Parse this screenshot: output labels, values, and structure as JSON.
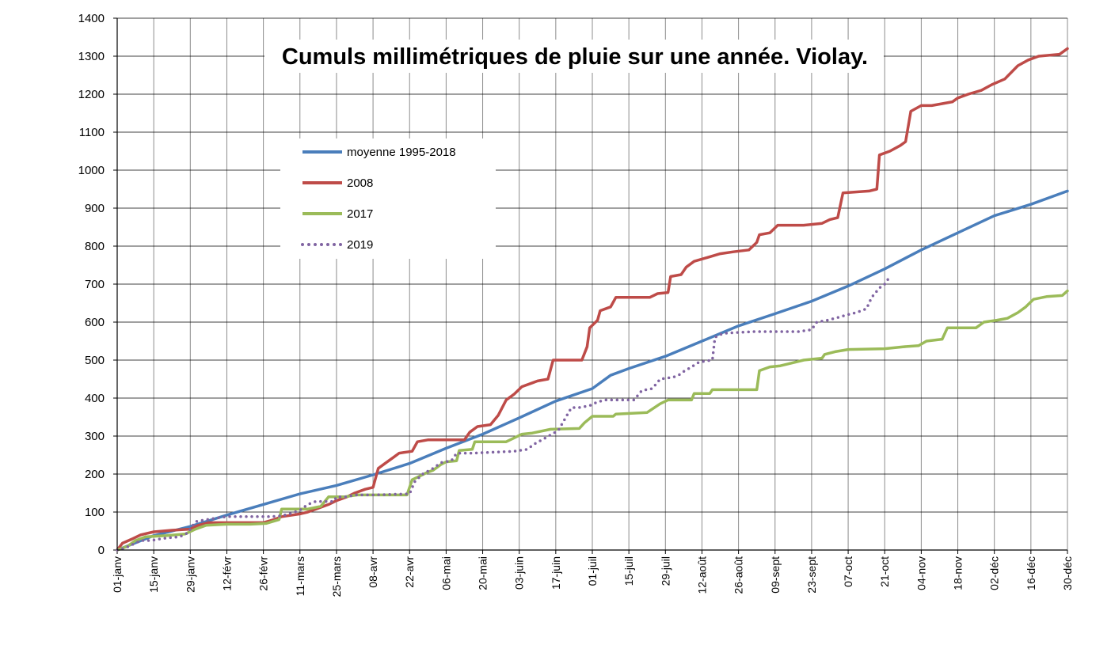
{
  "chart_data": {
    "type": "line",
    "title": "Cumuls millimétriques de pluie sur une année. Violay.",
    "xlabel": "",
    "ylabel": "",
    "ylim": [
      0,
      1400
    ],
    "yticks": [
      0,
      100,
      200,
      300,
      400,
      500,
      600,
      700,
      800,
      900,
      1000,
      1100,
      1200,
      1300,
      1400
    ],
    "xlim_day_of_year": [
      1,
      365
    ],
    "x_ticks": [
      {
        "day": 1,
        "label": "01-janv"
      },
      {
        "day": 15,
        "label": "15-janv"
      },
      {
        "day": 29,
        "label": "29-janv"
      },
      {
        "day": 43,
        "label": "12-févr"
      },
      {
        "day": 57,
        "label": "26-févr"
      },
      {
        "day": 71,
        "label": "11-mars"
      },
      {
        "day": 85,
        "label": "25-mars"
      },
      {
        "day": 99,
        "label": "08-avr"
      },
      {
        "day": 113,
        "label": "22-avr"
      },
      {
        "day": 127,
        "label": "06-mai"
      },
      {
        "day": 141,
        "label": "20-mai"
      },
      {
        "day": 155,
        "label": "03-juin"
      },
      {
        "day": 169,
        "label": "17-juin"
      },
      {
        "day": 183,
        "label": "01-juil"
      },
      {
        "day": 197,
        "label": "15-juil"
      },
      {
        "day": 211,
        "label": "29-juil"
      },
      {
        "day": 225,
        "label": "12-août"
      },
      {
        "day": 239,
        "label": "26-août"
      },
      {
        "day": 253,
        "label": "09-sept"
      },
      {
        "day": 267,
        "label": "23-sept"
      },
      {
        "day": 281,
        "label": "07-oct"
      },
      {
        "day": 295,
        "label": "21-oct"
      },
      {
        "day": 309,
        "label": "04-nov"
      },
      {
        "day": 323,
        "label": "18-nov"
      },
      {
        "day": 337,
        "label": "02-déc"
      },
      {
        "day": 351,
        "label": "16-déc"
      },
      {
        "day": 365,
        "label": "30-déc"
      }
    ],
    "grid": true,
    "legend_position": "upper-left",
    "series": [
      {
        "name": "moyenne 1995-2018",
        "color": "#4A7EBB",
        "style": "solid",
        "points": [
          [
            1,
            0
          ],
          [
            15,
            38
          ],
          [
            29,
            62
          ],
          [
            43,
            92
          ],
          [
            57,
            120
          ],
          [
            71,
            148
          ],
          [
            85,
            170
          ],
          [
            99,
            198
          ],
          [
            113,
            228
          ],
          [
            127,
            268
          ],
          [
            141,
            305
          ],
          [
            155,
            348
          ],
          [
            169,
            392
          ],
          [
            183,
            425
          ],
          [
            190,
            460
          ],
          [
            197,
            478
          ],
          [
            211,
            510
          ],
          [
            225,
            550
          ],
          [
            239,
            590
          ],
          [
            253,
            622
          ],
          [
            267,
            655
          ],
          [
            281,
            695
          ],
          [
            295,
            740
          ],
          [
            309,
            790
          ],
          [
            323,
            835
          ],
          [
            337,
            880
          ],
          [
            351,
            910
          ],
          [
            365,
            945
          ]
        ]
      },
      {
        "name": "2008",
        "color": "#BE4B48",
        "style": "solid",
        "points": [
          [
            1,
            0
          ],
          [
            3,
            18
          ],
          [
            7,
            30
          ],
          [
            10,
            40
          ],
          [
            15,
            48
          ],
          [
            22,
            52
          ],
          [
            29,
            55
          ],
          [
            32,
            65
          ],
          [
            36,
            72
          ],
          [
            43,
            72
          ],
          [
            50,
            72
          ],
          [
            57,
            72
          ],
          [
            61,
            80
          ],
          [
            64,
            88
          ],
          [
            71,
            95
          ],
          [
            74,
            100
          ],
          [
            78,
            110
          ],
          [
            82,
            120
          ],
          [
            85,
            130
          ],
          [
            89,
            140
          ],
          [
            92,
            150
          ],
          [
            96,
            160
          ],
          [
            99,
            165
          ],
          [
            101,
            215
          ],
          [
            104,
            230
          ],
          [
            107,
            245
          ],
          [
            109,
            255
          ],
          [
            114,
            260
          ],
          [
            116,
            285
          ],
          [
            120,
            290
          ],
          [
            134,
            290
          ],
          [
            136,
            310
          ],
          [
            139,
            325
          ],
          [
            144,
            330
          ],
          [
            147,
            355
          ],
          [
            150,
            395
          ],
          [
            153,
            410
          ],
          [
            156,
            430
          ],
          [
            160,
            440
          ],
          [
            162,
            445
          ],
          [
            166,
            450
          ],
          [
            168,
            500
          ],
          [
            179,
            500
          ],
          [
            181,
            535
          ],
          [
            182,
            585
          ],
          [
            185,
            605
          ],
          [
            186,
            630
          ],
          [
            190,
            640
          ],
          [
            192,
            665
          ],
          [
            205,
            665
          ],
          [
            208,
            675
          ],
          [
            212,
            678
          ],
          [
            213,
            720
          ],
          [
            217,
            725
          ],
          [
            219,
            745
          ],
          [
            222,
            760
          ],
          [
            227,
            770
          ],
          [
            232,
            780
          ],
          [
            237,
            785
          ],
          [
            243,
            790
          ],
          [
            246,
            810
          ],
          [
            247,
            830
          ],
          [
            251,
            835
          ],
          [
            254,
            855
          ],
          [
            264,
            855
          ],
          [
            271,
            860
          ],
          [
            274,
            870
          ],
          [
            277,
            875
          ],
          [
            279,
            940
          ],
          [
            289,
            945
          ],
          [
            292,
            950
          ],
          [
            293,
            1040
          ],
          [
            297,
            1050
          ],
          [
            301,
            1065
          ],
          [
            303,
            1075
          ],
          [
            305,
            1155
          ],
          [
            309,
            1170
          ],
          [
            313,
            1170
          ],
          [
            317,
            1175
          ],
          [
            321,
            1180
          ],
          [
            323,
            1190
          ],
          [
            327,
            1200
          ],
          [
            332,
            1210
          ],
          [
            336,
            1225
          ],
          [
            341,
            1240
          ],
          [
            346,
            1275
          ],
          [
            350,
            1290
          ],
          [
            354,
            1300
          ],
          [
            362,
            1305
          ],
          [
            365,
            1320
          ]
        ]
      },
      {
        "name": "2017",
        "color": "#9BBB59",
        "style": "solid",
        "points": [
          [
            1,
            0
          ],
          [
            5,
            10
          ],
          [
            8,
            25
          ],
          [
            12,
            35
          ],
          [
            20,
            38
          ],
          [
            27,
            42
          ],
          [
            31,
            55
          ],
          [
            35,
            65
          ],
          [
            43,
            68
          ],
          [
            52,
            68
          ],
          [
            58,
            70
          ],
          [
            63,
            80
          ],
          [
            64,
            108
          ],
          [
            69,
            108
          ],
          [
            74,
            108
          ],
          [
            79,
            115
          ],
          [
            82,
            140
          ],
          [
            88,
            140
          ],
          [
            93,
            145
          ],
          [
            112,
            145
          ],
          [
            114,
            185
          ],
          [
            117,
            195
          ],
          [
            120,
            205
          ],
          [
            122,
            210
          ],
          [
            125,
            225
          ],
          [
            127,
            232
          ],
          [
            131,
            235
          ],
          [
            132,
            262
          ],
          [
            137,
            265
          ],
          [
            138,
            285
          ],
          [
            150,
            285
          ],
          [
            153,
            295
          ],
          [
            156,
            305
          ],
          [
            160,
            308
          ],
          [
            167,
            318
          ],
          [
            178,
            320
          ],
          [
            180,
            335
          ],
          [
            183,
            352
          ],
          [
            191,
            352
          ],
          [
            192,
            358
          ],
          [
            204,
            362
          ],
          [
            209,
            385
          ],
          [
            212,
            395
          ],
          [
            221,
            395
          ],
          [
            222,
            412
          ],
          [
            228,
            412
          ],
          [
            229,
            422
          ],
          [
            246,
            422
          ],
          [
            247,
            472
          ],
          [
            251,
            482
          ],
          [
            255,
            485
          ],
          [
            258,
            490
          ],
          [
            264,
            500
          ],
          [
            271,
            505
          ],
          [
            272,
            515
          ],
          [
            276,
            522
          ],
          [
            281,
            528
          ],
          [
            295,
            530
          ],
          [
            302,
            535
          ],
          [
            308,
            538
          ],
          [
            311,
            550
          ],
          [
            317,
            555
          ],
          [
            319,
            585
          ],
          [
            330,
            585
          ],
          [
            333,
            600
          ],
          [
            338,
            605
          ],
          [
            342,
            610
          ],
          [
            346,
            625
          ],
          [
            349,
            640
          ],
          [
            352,
            660
          ],
          [
            357,
            667
          ],
          [
            363,
            670
          ],
          [
            365,
            682
          ]
        ]
      },
      {
        "name": "2019",
        "color": "#8064A2",
        "style": "dotted",
        "points": [
          [
            1,
            0
          ],
          [
            4,
            5
          ],
          [
            7,
            15
          ],
          [
            10,
            25
          ],
          [
            14,
            25
          ],
          [
            18,
            30
          ],
          [
            25,
            35
          ],
          [
            28,
            45
          ],
          [
            31,
            75
          ],
          [
            37,
            82
          ],
          [
            43,
            88
          ],
          [
            60,
            88
          ],
          [
            64,
            90
          ],
          [
            67,
            95
          ],
          [
            71,
            105
          ],
          [
            74,
            120
          ],
          [
            77,
            128
          ],
          [
            80,
            128
          ],
          [
            84,
            128
          ],
          [
            85,
            140
          ],
          [
            89,
            140
          ],
          [
            92,
            145
          ],
          [
            99,
            145
          ],
          [
            113,
            148
          ],
          [
            115,
            180
          ],
          [
            118,
            200
          ],
          [
            122,
            215
          ],
          [
            125,
            230
          ],
          [
            129,
            235
          ],
          [
            131,
            255
          ],
          [
            137,
            255
          ],
          [
            153,
            260
          ],
          [
            158,
            265
          ],
          [
            161,
            280
          ],
          [
            165,
            295
          ],
          [
            170,
            315
          ],
          [
            175,
            375
          ],
          [
            178,
            375
          ],
          [
            182,
            380
          ],
          [
            185,
            390
          ],
          [
            188,
            395
          ],
          [
            199,
            395
          ],
          [
            202,
            420
          ],
          [
            206,
            425
          ],
          [
            209,
            450
          ],
          [
            214,
            455
          ],
          [
            216,
            460
          ],
          [
            218,
            470
          ],
          [
            220,
            478
          ],
          [
            224,
            495
          ],
          [
            227,
            498
          ],
          [
            229,
            500
          ],
          [
            230,
            560
          ],
          [
            233,
            570
          ],
          [
            237,
            572
          ],
          [
            245,
            575
          ],
          [
            262,
            575
          ],
          [
            267,
            580
          ],
          [
            269,
            600
          ],
          [
            273,
            605
          ],
          [
            277,
            612
          ],
          [
            281,
            620
          ],
          [
            284,
            625
          ],
          [
            288,
            635
          ],
          [
            290,
            665
          ],
          [
            293,
            690
          ],
          [
            295,
            700
          ],
          [
            297,
            720
          ]
        ]
      }
    ]
  }
}
